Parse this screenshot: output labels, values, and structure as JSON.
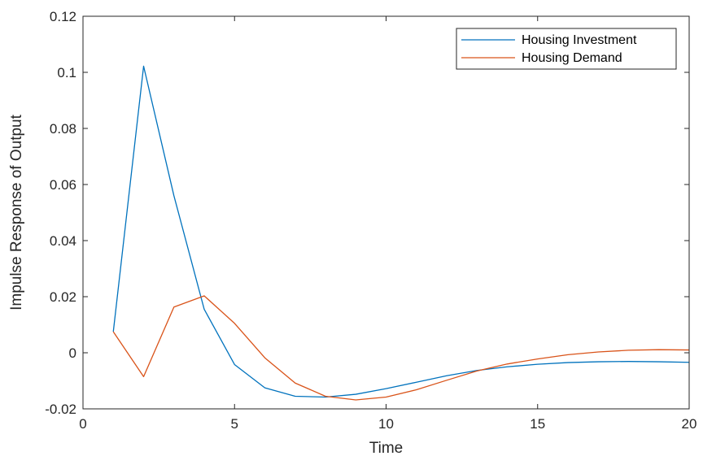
{
  "chart_data": {
    "type": "line",
    "title": "",
    "xlabel": "Time",
    "ylabel": "Impulse Response of Output",
    "xlim": [
      0,
      20
    ],
    "ylim": [
      -0.02,
      0.12
    ],
    "x_ticks": [
      0,
      5,
      10,
      15,
      20
    ],
    "x_tick_labels": [
      "0",
      "5",
      "10",
      "15",
      "20"
    ],
    "y_ticks": [
      -0.02,
      0,
      0.02,
      0.04,
      0.06,
      0.08,
      0.1,
      0.12
    ],
    "y_tick_labels": [
      "-0.02",
      "0",
      "0.02",
      "0.04",
      "0.06",
      "0.08",
      "0.1",
      "0.12"
    ],
    "grid": false,
    "legend_position": "top-right",
    "x": [
      1,
      2,
      3,
      4,
      5,
      6,
      7,
      8,
      9,
      10,
      11,
      12,
      13,
      14,
      15,
      16,
      17,
      18,
      19,
      20
    ],
    "series": [
      {
        "name": "Housing Investment",
        "color": "#0072BD",
        "values": [
          0.0075,
          0.1022,
          0.056,
          0.0155,
          -0.0042,
          -0.0125,
          -0.0155,
          -0.0158,
          -0.0148,
          -0.0128,
          -0.0105,
          -0.0082,
          -0.0063,
          -0.005,
          -0.0041,
          -0.0035,
          -0.0032,
          -0.0031,
          -0.0032,
          -0.0034
        ]
      },
      {
        "name": "Housing Demand",
        "color": "#D95319",
        "values": [
          0.0075,
          -0.0085,
          0.0163,
          0.0203,
          0.0105,
          -0.0018,
          -0.0108,
          -0.0155,
          -0.0168,
          -0.0158,
          -0.0132,
          -0.0098,
          -0.0065,
          -0.004,
          -0.0022,
          -0.0007,
          0.0003,
          0.0009,
          0.0011,
          0.001
        ]
      }
    ]
  }
}
